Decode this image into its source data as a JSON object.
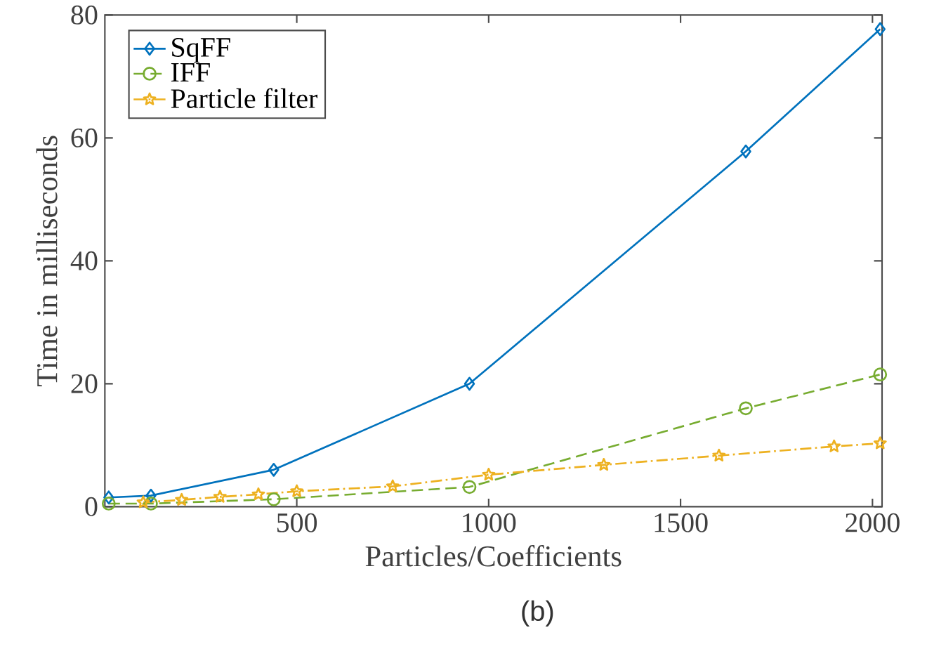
{
  "chart_data": {
    "type": "line",
    "xlabel": "Particles/Coefficients",
    "ylabel": "Time in milliseconds",
    "annotations": [
      "(b)"
    ],
    "xlim": [
      0,
      2025
    ],
    "ylim": [
      0,
      80
    ],
    "xticks": [
      500,
      1000,
      1500,
      2000
    ],
    "yticks": [
      0,
      20,
      40,
      60,
      80
    ],
    "grid": false,
    "legend": "top left",
    "series": [
      {
        "name": "SqFF",
        "color": "#0072bd",
        "marker": "diamond",
        "line_style": "solid",
        "x": [
          10,
          120,
          440,
          950,
          1670,
          2020
        ],
        "values": [
          1.5,
          1.8,
          6,
          20,
          57.8,
          77.7
        ]
      },
      {
        "name": "IFF",
        "color": "#77ac30",
        "marker": "circle",
        "line_style": "dashed",
        "x": [
          10,
          120,
          440,
          950,
          1670,
          2020
        ],
        "values": [
          0.5,
          0.5,
          1.2,
          3.2,
          16,
          21.5
        ]
      },
      {
        "name": "Particle filter",
        "color": "#edb120",
        "marker": "star",
        "line_style": "dashdot",
        "x": [
          100,
          200,
          300,
          400,
          500,
          750,
          1000,
          1300,
          1600,
          1900,
          2020
        ],
        "values": [
          0.7,
          1.1,
          1.6,
          2.0,
          2.5,
          3.3,
          5.2,
          6.8,
          8.3,
          9.8,
          10.3
        ]
      }
    ]
  }
}
